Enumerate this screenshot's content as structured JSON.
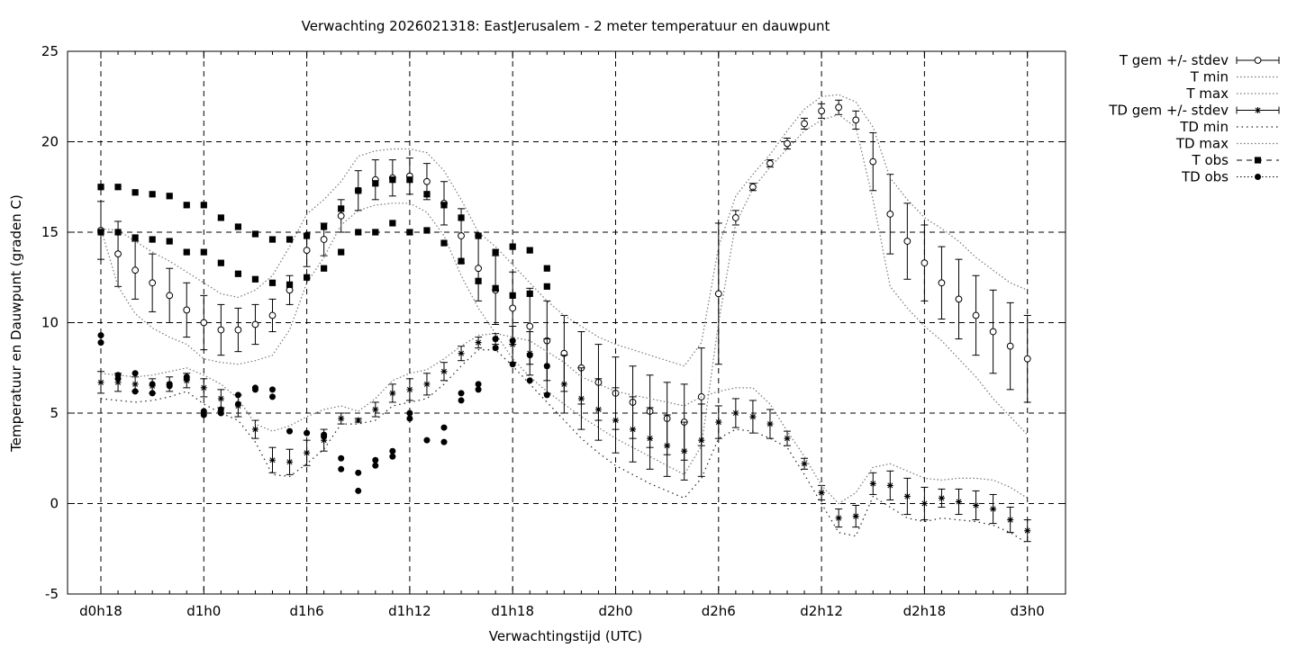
{
  "chart_data": {
    "type": "scatter",
    "title": "Verwachting 2026021318: EastJerusalem - 2 meter temperatuur en dauwpunt",
    "xlabel": "Verwachtingstijd (UTC)",
    "ylabel": "Temperatuur en Dauwpunt (graden C)",
    "ylim": [
      -5,
      25
    ],
    "y_ticks": [
      -5,
      0,
      5,
      10,
      15,
      20,
      25
    ],
    "x_ticks": [
      {
        "hour": 18,
        "label": "d0h18"
      },
      {
        "hour": 24,
        "label": "d1h0"
      },
      {
        "hour": 30,
        "label": "d1h6"
      },
      {
        "hour": 36,
        "label": "d1h12"
      },
      {
        "hour": 42,
        "label": "d1h18"
      },
      {
        "hour": 48,
        "label": "d2h0"
      },
      {
        "hour": 54,
        "label": "d2h6"
      },
      {
        "hour": 60,
        "label": "d2h12"
      },
      {
        "hour": 66,
        "label": "d2h18"
      },
      {
        "hour": 72,
        "label": "d3h0"
      }
    ],
    "grid": true,
    "legend_position": "outside-right",
    "x": [
      18,
      19,
      20,
      21,
      22,
      23,
      24,
      25,
      26,
      27,
      28,
      29,
      30,
      31,
      32,
      33,
      34,
      35,
      36,
      37,
      38,
      39,
      40,
      41,
      42,
      43,
      44,
      45,
      46,
      47,
      48,
      49,
      50,
      51,
      52,
      53,
      54,
      55,
      56,
      57,
      58,
      59,
      60,
      61,
      62,
      63,
      64,
      65,
      66,
      67,
      68,
      69,
      70,
      71,
      72
    ],
    "series": [
      {
        "name": "T gem +/- stdev",
        "marker": "open-circle",
        "values": [
          15.1,
          13.8,
          12.9,
          12.2,
          11.5,
          10.7,
          10.0,
          9.6,
          9.6,
          9.9,
          10.4,
          11.8,
          14.0,
          14.6,
          15.9,
          17.3,
          17.9,
          18.0,
          18.1,
          17.8,
          16.6,
          14.8,
          13.0,
          11.8,
          10.8,
          9.8,
          9.0,
          8.3,
          7.5,
          6.7,
          6.1,
          5.6,
          5.1,
          4.7,
          4.5,
          5.9,
          11.6,
          15.8,
          17.5,
          18.8,
          19.9,
          21.0,
          21.7,
          21.9,
          21.2,
          18.9,
          16.0,
          14.5,
          13.3,
          12.2,
          11.3,
          10.4,
          9.5,
          8.7,
          8.0
        ],
        "stdev": [
          1.6,
          1.8,
          1.6,
          1.6,
          1.5,
          1.5,
          1.5,
          1.4,
          1.2,
          1.1,
          0.9,
          0.8,
          0.9,
          0.9,
          0.9,
          1.1,
          1.1,
          1.0,
          1.0,
          1.0,
          1.2,
          1.5,
          1.8,
          1.9,
          2.0,
          2.1,
          2.2,
          2.1,
          2.0,
          2.1,
          2.0,
          2.0,
          2.0,
          2.0,
          2.1,
          2.7,
          3.9,
          0.4,
          0.2,
          0.2,
          0.3,
          0.3,
          0.4,
          0.4,
          0.5,
          1.6,
          2.2,
          2.1,
          2.1,
          2.0,
          2.2,
          2.2,
          2.3,
          2.4,
          2.4
        ]
      },
      {
        "name": "T min",
        "marker": "none",
        "values": [
          15.2,
          12.0,
          10.5,
          9.7,
          9.2,
          8.8,
          8.0,
          7.8,
          7.7,
          7.9,
          8.2,
          9.6,
          12.2,
          13.6,
          15.4,
          16.2,
          16.5,
          16.6,
          16.6,
          16.1,
          14.8,
          12.6,
          10.8,
          9.4,
          8.0,
          7.0,
          6.2,
          5.5,
          4.8,
          4.2,
          3.6,
          3.1,
          2.6,
          2.1,
          1.6,
          3.2,
          10.0,
          15.5,
          17.4,
          18.6,
          19.6,
          20.6,
          21.2,
          21.5,
          20.8,
          16.8,
          12.0,
          10.8,
          9.8,
          9.0,
          8.0,
          7.0,
          5.8,
          4.8,
          3.8
        ]
      },
      {
        "name": "T max",
        "marker": "none",
        "values": [
          15.2,
          15.1,
          14.5,
          13.9,
          13.4,
          12.8,
          12.2,
          11.6,
          11.4,
          11.8,
          12.6,
          14.2,
          16.0,
          16.8,
          17.8,
          19.2,
          19.5,
          19.6,
          19.6,
          19.4,
          18.4,
          16.8,
          15.0,
          14.2,
          13.2,
          12.2,
          11.2,
          10.4,
          9.8,
          9.2,
          8.8,
          8.5,
          8.2,
          7.9,
          7.6,
          8.9,
          14.2,
          17.0,
          18.2,
          19.3,
          20.6,
          21.8,
          22.5,
          22.6,
          22.2,
          20.8,
          18.0,
          16.8,
          15.8,
          15.2,
          14.5,
          13.6,
          12.9,
          12.2,
          11.8
        ]
      },
      {
        "name": "TD gem +/- stdev",
        "marker": "asterisk",
        "values": [
          6.7,
          6.7,
          6.6,
          6.5,
          6.6,
          6.8,
          6.4,
          5.8,
          5.4,
          4.1,
          2.4,
          2.3,
          2.8,
          3.5,
          4.7,
          4.6,
          5.2,
          6.1,
          6.3,
          6.6,
          7.3,
          8.3,
          8.9,
          9.1,
          8.8,
          8.3,
          7.6,
          6.6,
          5.8,
          5.2,
          4.6,
          4.1,
          3.6,
          3.2,
          2.9,
          3.5,
          4.5,
          5.0,
          4.8,
          4.4,
          3.6,
          2.2,
          0.6,
          -0.8,
          -0.7,
          1.1,
          1.0,
          0.4,
          0.0,
          0.3,
          0.1,
          -0.1,
          -0.3,
          -0.9,
          -1.5
        ],
        "stdev": [
          0.6,
          0.5,
          0.4,
          0.4,
          0.4,
          0.4,
          0.5,
          0.5,
          0.6,
          0.5,
          0.7,
          0.7,
          0.7,
          0.6,
          0.3,
          0.1,
          0.4,
          0.5,
          0.6,
          0.6,
          0.5,
          0.4,
          0.3,
          0.3,
          1.0,
          1.2,
          1.5,
          1.6,
          1.7,
          1.7,
          1.8,
          1.8,
          1.7,
          1.7,
          1.6,
          2.0,
          0.9,
          0.8,
          0.9,
          0.8,
          0.4,
          0.3,
          0.4,
          0.5,
          0.6,
          0.6,
          0.8,
          1.0,
          0.9,
          0.5,
          0.7,
          0.8,
          0.8,
          0.7,
          0.6
        ]
      },
      {
        "name": "TD min",
        "marker": "none",
        "values": [
          5.8,
          5.7,
          5.6,
          5.7,
          5.9,
          6.2,
          5.5,
          5.0,
          4.6,
          3.4,
          1.6,
          1.5,
          2.2,
          3.0,
          4.4,
          4.4,
          4.6,
          5.4,
          5.6,
          5.8,
          6.6,
          7.6,
          8.5,
          8.5,
          7.6,
          6.6,
          5.6,
          4.6,
          3.6,
          2.8,
          2.1,
          1.6,
          1.1,
          0.7,
          0.3,
          1.4,
          3.6,
          4.1,
          4.0,
          3.6,
          3.1,
          1.6,
          0.0,
          -1.6,
          -1.8,
          0.4,
          -0.2,
          -0.8,
          -1.0,
          -0.8,
          -0.9,
          -1.0,
          -1.2,
          -1.6,
          -2.2
        ]
      },
      {
        "name": "TD max",
        "marker": "none",
        "values": [
          7.2,
          7.1,
          7.0,
          7.1,
          7.3,
          7.5,
          7.1,
          6.6,
          5.8,
          4.4,
          4.0,
          4.3,
          4.8,
          5.2,
          5.4,
          5.1,
          5.8,
          6.8,
          7.2,
          7.4,
          8.0,
          8.7,
          9.3,
          9.4,
          9.2,
          9.0,
          8.4,
          7.8,
          7.0,
          6.6,
          6.2,
          6.0,
          5.8,
          5.6,
          5.4,
          5.9,
          6.2,
          6.4,
          6.4,
          5.5,
          4.0,
          2.6,
          1.0,
          0.0,
          0.6,
          2.0,
          2.2,
          1.8,
          1.4,
          1.3,
          1.4,
          1.4,
          1.3,
          0.9,
          0.3
        ]
      },
      {
        "name": "T obs",
        "marker": "filled-square",
        "points": [
          [
            18,
            17.5
          ],
          [
            18,
            15.0
          ],
          [
            19,
            17.5
          ],
          [
            19,
            15.0
          ],
          [
            20,
            17.2
          ],
          [
            20,
            14.7
          ],
          [
            21,
            17.1
          ],
          [
            21,
            14.6
          ],
          [
            22,
            17.0
          ],
          [
            22,
            14.5
          ],
          [
            23,
            16.5
          ],
          [
            23,
            13.9
          ],
          [
            24,
            16.5
          ],
          [
            24,
            13.9
          ],
          [
            25,
            15.8
          ],
          [
            25,
            13.3
          ],
          [
            26,
            15.3
          ],
          [
            26,
            12.7
          ],
          [
            27,
            14.9
          ],
          [
            27,
            12.4
          ],
          [
            28,
            14.6
          ],
          [
            28,
            12.2
          ],
          [
            29,
            14.6
          ],
          [
            29,
            12.1
          ],
          [
            30,
            14.8
          ],
          [
            30,
            12.5
          ],
          [
            31,
            15.3
          ],
          [
            31,
            13.0
          ],
          [
            32,
            16.3
          ],
          [
            32,
            13.9
          ],
          [
            33,
            17.3
          ],
          [
            33,
            15.0
          ],
          [
            34,
            17.7
          ],
          [
            34,
            15.0
          ],
          [
            35,
            17.9
          ],
          [
            35,
            15.5
          ],
          [
            36,
            17.9
          ],
          [
            36,
            15.0
          ],
          [
            37,
            17.1
          ],
          [
            37,
            15.1
          ],
          [
            38,
            16.5
          ],
          [
            38,
            14.4
          ],
          [
            39,
            15.8
          ],
          [
            39,
            13.4
          ],
          [
            40,
            14.8
          ],
          [
            40,
            12.3
          ],
          [
            41,
            13.9
          ],
          [
            41,
            11.9
          ],
          [
            42,
            14.2
          ],
          [
            42,
            11.5
          ],
          [
            43,
            14.0
          ],
          [
            43,
            11.6
          ],
          [
            44,
            13.0
          ],
          [
            44,
            12.0
          ]
        ]
      },
      {
        "name": "TD obs",
        "marker": "filled-circle",
        "points": [
          [
            18,
            9.3
          ],
          [
            18,
            8.9
          ],
          [
            19,
            7.1
          ],
          [
            19,
            6.9
          ],
          [
            20,
            7.2
          ],
          [
            20,
            6.2
          ],
          [
            21,
            6.6
          ],
          [
            21,
            6.1
          ],
          [
            22,
            6.6
          ],
          [
            22,
            6.5
          ],
          [
            23,
            7.0
          ],
          [
            23,
            6.9
          ],
          [
            24,
            5.1
          ],
          [
            24,
            4.9
          ],
          [
            25,
            5.2
          ],
          [
            25,
            5.0
          ],
          [
            26,
            6.0
          ],
          [
            26,
            5.5
          ],
          [
            27,
            6.4
          ],
          [
            27,
            6.3
          ],
          [
            28,
            6.3
          ],
          [
            28,
            5.9
          ],
          [
            29,
            4.0
          ],
          [
            30,
            3.9
          ],
          [
            31,
            3.8
          ],
          [
            31,
            3.7
          ],
          [
            32,
            2.5
          ],
          [
            32,
            1.9
          ],
          [
            33,
            1.7
          ],
          [
            33,
            0.7
          ],
          [
            34,
            2.4
          ],
          [
            34,
            2.1
          ],
          [
            35,
            2.9
          ],
          [
            35,
            2.6
          ],
          [
            36,
            5.0
          ],
          [
            36,
            4.7
          ],
          [
            37,
            3.5
          ],
          [
            38,
            4.2
          ],
          [
            38,
            3.4
          ],
          [
            39,
            6.1
          ],
          [
            39,
            5.7
          ],
          [
            40,
            6.6
          ],
          [
            40,
            6.3
          ],
          [
            41,
            9.1
          ],
          [
            41,
            8.6
          ],
          [
            42,
            9.0
          ],
          [
            42,
            7.7
          ],
          [
            43,
            8.2
          ],
          [
            43,
            6.8
          ],
          [
            44,
            7.6
          ],
          [
            44,
            6.0
          ]
        ]
      }
    ]
  }
}
